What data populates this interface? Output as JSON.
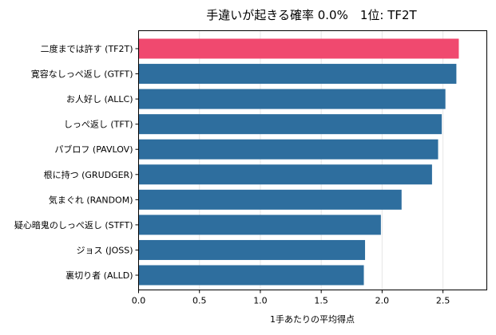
{
  "chart_data": {
    "type": "bar",
    "orientation": "horizontal",
    "title": "手違いが起きる確率 0.0%　1位: TF2T",
    "xlabel": "1手あたりの平均得点",
    "ylabel": "",
    "xlim": [
      0,
      2.86
    ],
    "xticks": [
      "0.0",
      "0.5",
      "1.0",
      "1.5",
      "2.0",
      "2.5"
    ],
    "xtick_values": [
      0,
      0.5,
      1.0,
      1.5,
      2.0,
      2.5
    ],
    "grid": "vertical",
    "categories": [
      "二度までは許す (TF2T)",
      "寛容なしっぺ返し (GTFT)",
      "お人好し (ALLC)",
      "しっぺ返し (TFT)",
      "パブロフ (PAVLOV)",
      "根に持つ (GRUDGER)",
      "気まぐれ (RANDOM)",
      "疑心暗鬼のしっぺ返し (STFT)",
      "ジョス (JOSS)",
      "裏切り者 (ALLD)"
    ],
    "values": [
      2.63,
      2.61,
      2.52,
      2.49,
      2.46,
      2.41,
      2.16,
      1.99,
      1.86,
      1.85
    ],
    "colors": {
      "highlight": "#f0496f",
      "default": "#2e6e9e"
    },
    "highlight_index": 0
  }
}
